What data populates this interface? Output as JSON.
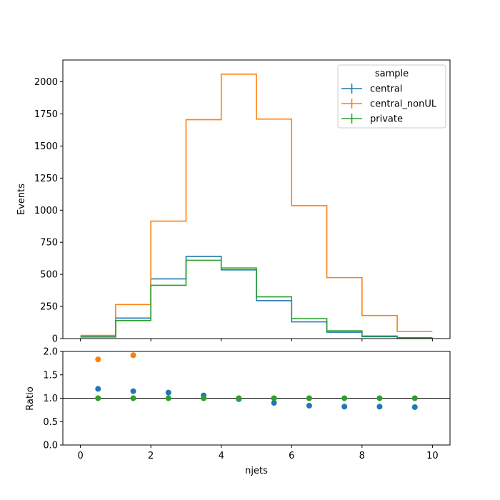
{
  "chart_data": [
    {
      "type": "step",
      "ylabel": "Events",
      "xlim": [
        -0.5,
        10.5
      ],
      "ylim": [
        0,
        2170
      ],
      "bin_edges": [
        0,
        1,
        2,
        3,
        4,
        5,
        6,
        7,
        8,
        9,
        10
      ],
      "yticks": [
        0,
        250,
        500,
        750,
        1000,
        1250,
        1500,
        1750,
        2000
      ],
      "legend": {
        "title": "sample",
        "placement": "top-right"
      },
      "series": [
        {
          "name": "central",
          "color": "#1f77b4",
          "values": [
            15,
            160,
            465,
            640,
            535,
            295,
            130,
            50,
            15,
            5
          ]
        },
        {
          "name": "central_nonUL",
          "color": "#ff7f0e",
          "values": [
            25,
            265,
            915,
            1705,
            2060,
            1710,
            1035,
            475,
            180,
            55
          ]
        },
        {
          "name": "private",
          "color": "#2ca02c",
          "values": [
            12,
            140,
            415,
            610,
            550,
            325,
            155,
            60,
            20,
            7
          ]
        }
      ]
    },
    {
      "type": "scatter",
      "xlabel": "njets",
      "ylabel": "Ratio",
      "xlim": [
        -0.5,
        10.5
      ],
      "ylim": [
        0,
        2
      ],
      "xticks": [
        0,
        2,
        4,
        6,
        8,
        10
      ],
      "yticks": [
        0.0,
        0.5,
        1.0,
        1.5,
        2.0
      ],
      "ytick_labels": [
        "0.0",
        "0.5",
        "1.0",
        "1.5",
        "2.0"
      ],
      "reference_line": 1.0,
      "x": [
        0.5,
        1.5,
        2.5,
        3.5,
        4.5,
        5.5,
        6.5,
        7.5,
        8.5,
        9.5
      ],
      "series": [
        {
          "name": "central",
          "color": "#1f77b4",
          "values": [
            1.2,
            1.15,
            1.12,
            1.06,
            0.98,
            0.9,
            0.84,
            0.82,
            0.82,
            0.81
          ]
        },
        {
          "name": "central_nonUL",
          "color": "#ff7f0e",
          "values": [
            1.83,
            1.92,
            null,
            null,
            null,
            null,
            null,
            null,
            null,
            null
          ]
        },
        {
          "name": "private",
          "color": "#2ca02c",
          "values": [
            1.0,
            1.0,
            1.0,
            1.0,
            1.0,
            1.0,
            1.0,
            1.0,
            1.0,
            1.0
          ]
        }
      ]
    }
  ]
}
